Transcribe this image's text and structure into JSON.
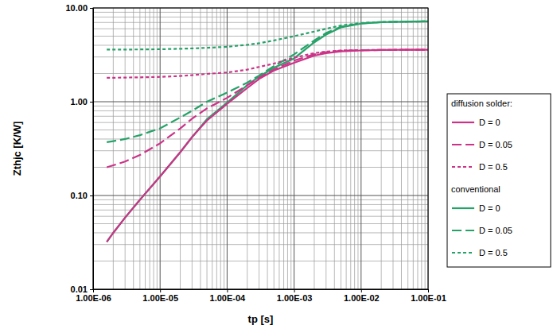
{
  "chart_data": {
    "type": "line",
    "xlabel": "tp [s]",
    "ylabel": "Zthjc [K/W]",
    "log": true,
    "grid": true,
    "legend": "right",
    "xlim": [
      1e-06,
      0.1
    ],
    "ylim": [
      0.01,
      10
    ],
    "xticks": [
      {
        "value": 1e-06,
        "label": "1.00E-06"
      },
      {
        "value": 1e-05,
        "label": "1.00E-05"
      },
      {
        "value": 0.0001,
        "label": "1.00E-04"
      },
      {
        "value": 0.001,
        "label": "1.00E-03"
      },
      {
        "value": 0.01,
        "label": "1.00E-02"
      },
      {
        "value": 0.1,
        "label": "1.00E-01"
      }
    ],
    "yticks": [
      {
        "value": 0.01,
        "label": "0.01"
      },
      {
        "value": 0.1,
        "label": "0.10"
      },
      {
        "value": 1,
        "label": "1.00"
      },
      {
        "value": 10,
        "label": "10.00"
      }
    ],
    "x": [
      1.6e-06,
      2e-06,
      3e-06,
      5e-06,
      1e-05,
      2e-05,
      3e-05,
      5e-05,
      0.0001,
      0.0002,
      0.0003,
      0.0005,
      0.001,
      0.002,
      0.003,
      0.005,
      0.01,
      0.02,
      0.05,
      0.1
    ],
    "series": [
      {
        "name": "D = 0",
        "group": "diffusion solder:",
        "color": "#cc3388",
        "line_style": "solid",
        "values": [
          0.032,
          0.04,
          0.058,
          0.09,
          0.16,
          0.29,
          0.42,
          0.63,
          0.95,
          1.4,
          1.75,
          2.15,
          2.6,
          3.1,
          3.3,
          3.45,
          3.52,
          3.56,
          3.58,
          3.58
        ]
      },
      {
        "name": "D = 0.05",
        "group": "diffusion solder:",
        "color": "#cc3388",
        "line_style": "dashed",
        "values": [
          0.2,
          0.21,
          0.23,
          0.27,
          0.36,
          0.52,
          0.66,
          0.85,
          1.1,
          1.5,
          1.8,
          2.2,
          2.75,
          3.2,
          3.38,
          3.5,
          3.54,
          3.56,
          3.58,
          3.58
        ]
      },
      {
        "name": "D = 0.5",
        "group": "diffusion solder:",
        "color": "#cc3388",
        "line_style": "dotted",
        "values": [
          1.8,
          1.8,
          1.81,
          1.82,
          1.84,
          1.88,
          1.92,
          1.98,
          2.05,
          2.2,
          2.35,
          2.55,
          2.95,
          3.3,
          3.42,
          3.52,
          3.55,
          3.57,
          3.58,
          3.58
        ]
      },
      {
        "name": "D = 0",
        "group": "conventional",
        "color": "#26a269",
        "line_style": "solid",
        "values": [
          0.032,
          0.04,
          0.058,
          0.09,
          0.16,
          0.29,
          0.42,
          0.65,
          0.98,
          1.5,
          1.85,
          2.3,
          2.9,
          4.3,
          5.2,
          6.2,
          6.8,
          7.05,
          7.15,
          7.2
        ]
      },
      {
        "name": "D = 0.05",
        "group": "conventional",
        "color": "#26a269",
        "line_style": "dashed",
        "values": [
          0.37,
          0.38,
          0.4,
          0.44,
          0.52,
          0.68,
          0.8,
          1.0,
          1.25,
          1.6,
          1.9,
          2.4,
          3.2,
          4.5,
          5.4,
          6.3,
          6.85,
          7.05,
          7.15,
          7.2
        ]
      },
      {
        "name": "D = 0.5",
        "group": "conventional",
        "color": "#26a269",
        "line_style": "dotted",
        "values": [
          3.6,
          3.6,
          3.6,
          3.61,
          3.63,
          3.67,
          3.7,
          3.76,
          3.85,
          4.05,
          4.2,
          4.5,
          5.0,
          5.6,
          6.0,
          6.5,
          6.9,
          7.08,
          7.15,
          7.2
        ]
      }
    ]
  }
}
